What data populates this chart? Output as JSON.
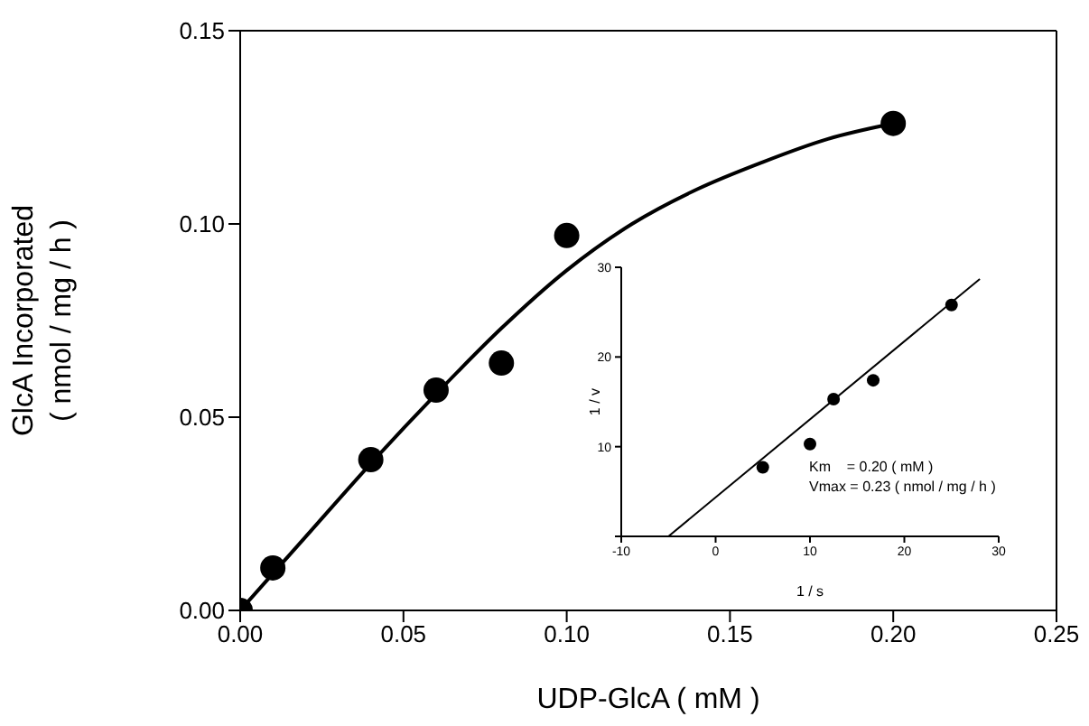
{
  "chart_data": [
    {
      "type": "scatter",
      "xlabel": "UDP-GlcA   ( mM )",
      "ylabel": "GlcA Incorporated\n( nmol / mg / h )",
      "marker": "circle",
      "line_style": "solid",
      "series": [
        {
          "color": "#000000",
          "x": [
            0,
            0.01,
            0.04,
            0.06,
            0.08,
            0.1,
            0.2
          ],
          "values": [
            0,
            0.011,
            0.039,
            0.057,
            0.064,
            0.097,
            0.126
          ]
        },
        {
          "type": "line",
          "color": "#000000",
          "marker": "none",
          "x": [
            0,
            0.02,
            0.04,
            0.06,
            0.08,
            0.1,
            0.12,
            0.14,
            0.16,
            0.18,
            0.2
          ],
          "values": [
            0,
            0.019,
            0.038,
            0.056,
            0.073,
            0.088,
            0.1,
            0.109,
            0.116,
            0.122,
            0.126
          ]
        }
      ],
      "xlim": [
        0,
        0.25
      ],
      "xticks": [
        {
          "value": 0,
          "label": "0.00"
        },
        {
          "value": 0.05,
          "label": "0.05"
        },
        {
          "value": 0.1,
          "label": "0.10"
        },
        {
          "value": 0.15,
          "label": "0.15"
        },
        {
          "value": 0.2,
          "label": "0.20"
        },
        {
          "value": 0.25,
          "label": "0.25"
        }
      ],
      "ylim": [
        0,
        0.15
      ],
      "yticks": [
        {
          "value": 0,
          "label": "0.00"
        },
        {
          "value": 0.05,
          "label": "0.05"
        },
        {
          "value": 0.1,
          "label": "0.10"
        },
        {
          "value": 0.15,
          "label": "0.15"
        }
      ]
    },
    {
      "type": "scatter",
      "xlabel": "1 / s",
      "ylabel": "1 / v",
      "marker": "circle",
      "line_style": "solid",
      "series": [
        {
          "color": "#000000",
          "x": [
            5,
            10,
            12.5,
            16.7,
            25
          ],
          "values": [
            7.7,
            10.3,
            15.3,
            17.4,
            25.8
          ]
        },
        {
          "type": "line",
          "color": "#000000",
          "marker": "none",
          "x": [
            -5,
            28
          ],
          "values": [
            0,
            28.7
          ]
        }
      ],
      "xlim": [
        -10,
        30
      ],
      "xticks": [
        -10,
        0,
        10,
        20,
        30
      ],
      "ylim": [
        0,
        30
      ],
      "yticks": [
        {
          "value": 0,
          "label": null
        },
        10,
        20,
        30
      ],
      "annotations": [
        "Km    = 0.20 ( mM )",
        "Vmax = 0.23 ( nmol / mg / h )"
      ]
    }
  ]
}
